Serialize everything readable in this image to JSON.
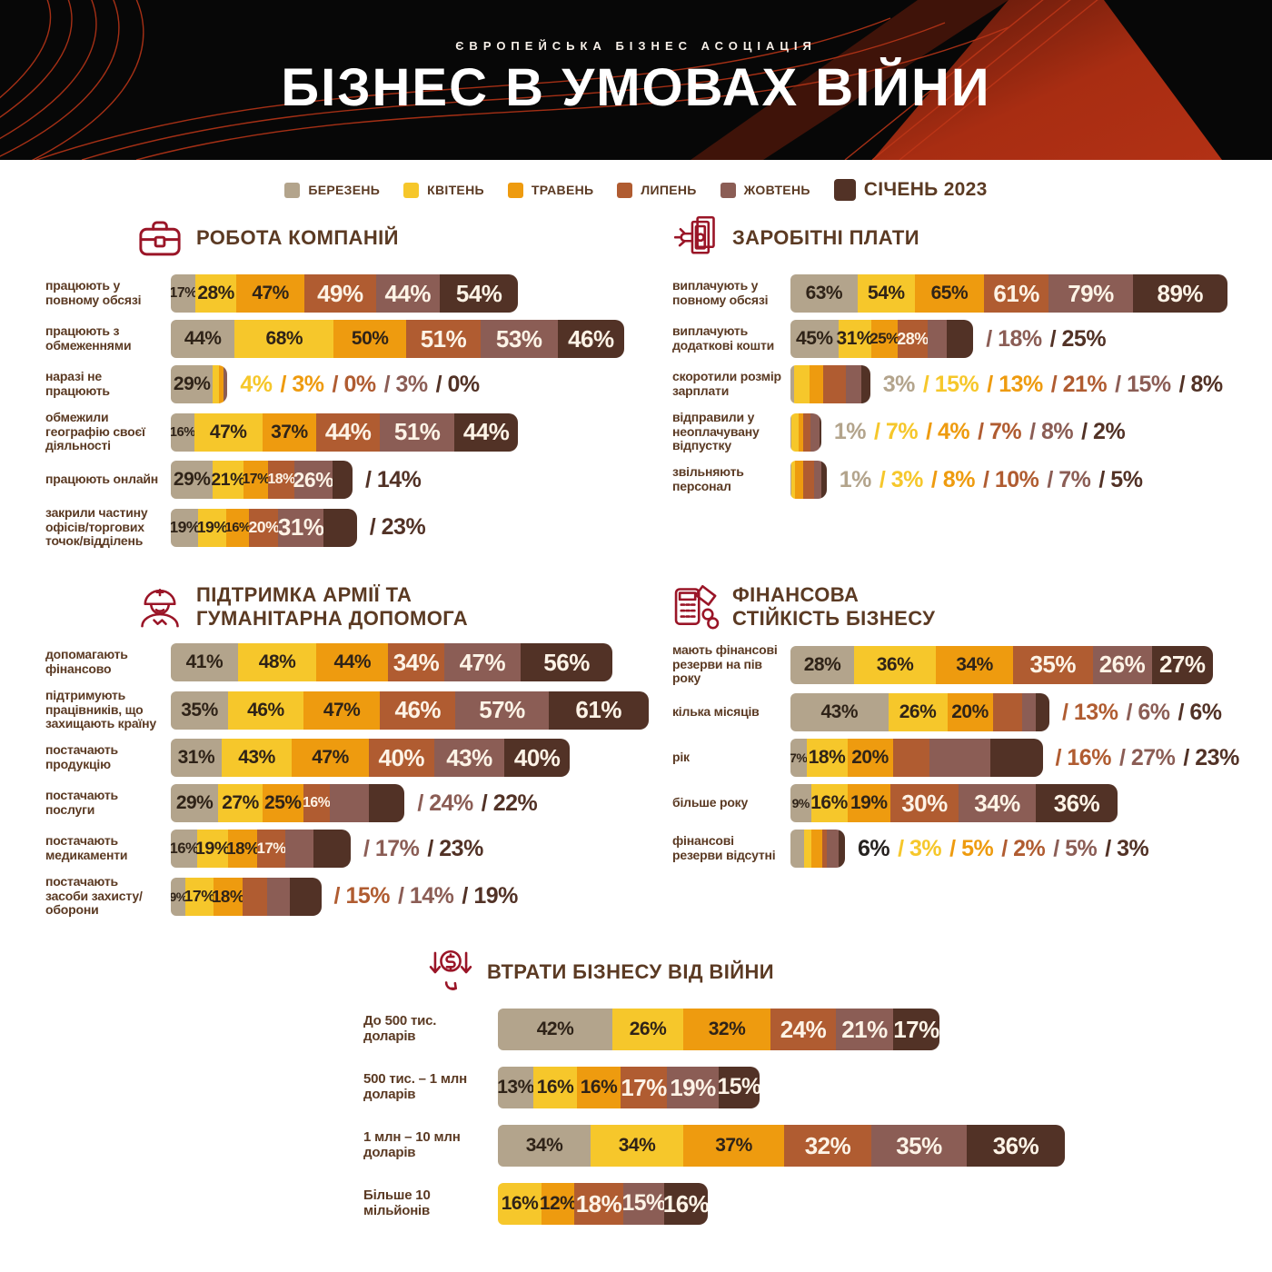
{
  "header": {
    "brand": "ЄВРОПЕЙСЬКА БІЗНЕС АСОЦІАЦІЯ",
    "title": "БІЗНЕС В УМОВАХ ВІЙНИ"
  },
  "months": [
    "БЕРЕЗЕНЬ",
    "КВІТЕНЬ",
    "ТРАВЕНЬ",
    "ЛИПЕНЬ",
    "ЖОВТЕНЬ",
    "СІЧЕНЬ 2023"
  ],
  "palette": {
    "month_colors": [
      "#b3a48c",
      "#f6c72b",
      "#ee9b0f",
      "#b05c31",
      "#8b5d55",
      "#523226"
    ],
    "ink": "#5b3a23",
    "icon_red": "#9a1527",
    "label_dark": "#2f2318",
    "label_light": "#fdf3e6",
    "header_red": "#b23115"
  },
  "chart_data": [
    {
      "type": "bar",
      "title": "РОБОТА КОМПАНІЙ",
      "icon": "briefcase-icon",
      "placement": "left",
      "unit": "%",
      "series_names": [
        "БЕРЕЗЕНЬ",
        "КВІТЕНЬ",
        "ТРАВЕНЬ",
        "ЛИПЕНЬ",
        "ЖОВТЕНЬ",
        "СІЧЕНЬ 2023"
      ],
      "rows": [
        {
          "category": "працюють у повному обсязі",
          "values": [
            17,
            28,
            47,
            49,
            44,
            54
          ],
          "inside": 6,
          "outside": []
        },
        {
          "category": "працюють з обмеженнями",
          "values": [
            44,
            68,
            50,
            51,
            53,
            46
          ],
          "inside": 6,
          "outside": []
        },
        {
          "category": "наразі не працюють",
          "values": [
            29,
            4,
            3,
            0,
            3,
            0
          ],
          "inside": 1,
          "outside": [
            {
              "text": "4%",
              "month": 1
            },
            {
              "text": "/ 3%",
              "month": 2
            },
            {
              "text": "/ 0%",
              "month": 3
            },
            {
              "text": "/ 3%",
              "month": 4
            },
            {
              "text": "/ 0%",
              "month": 5
            }
          ]
        },
        {
          "category": "обмежили географію своєї діяльності",
          "values": [
            16,
            47,
            37,
            44,
            51,
            44
          ],
          "inside": 6,
          "outside": []
        },
        {
          "category": "працюють онлайн",
          "values": [
            29,
            21,
            17,
            18,
            26,
            14
          ],
          "inside": 5,
          "outside": [
            {
              "text": "/ 14%",
              "month": 5
            }
          ]
        },
        {
          "category": "закрили частину офісів/торгових точок/відділень",
          "values": [
            19,
            19,
            16,
            20,
            31,
            23
          ],
          "inside": 5,
          "outside": [
            {
              "text": "/ 23%",
              "month": 5
            }
          ]
        }
      ]
    },
    {
      "type": "bar",
      "title": "ЗАРОБІТНІ ПЛАТИ",
      "icon": "banknotes-icon",
      "placement": "right",
      "unit": "%",
      "series_names": [
        "БЕРЕЗЕНЬ",
        "КВІТЕНЬ",
        "ТРАВЕНЬ",
        "ЛИПЕНЬ",
        "ЖОВТЕНЬ",
        "СІЧЕНЬ 2023"
      ],
      "rows": [
        {
          "category": "виплачують у повному обсязі",
          "values": [
            63,
            54,
            65,
            61,
            79,
            89
          ],
          "inside": 6,
          "outside": []
        },
        {
          "category": "виплачують додаткові кошти",
          "values": [
            45,
            31,
            25,
            28,
            18,
            25
          ],
          "inside": 4,
          "outside": [
            {
              "text": "/ 18%",
              "month": 4
            },
            {
              "text": "/ 25%",
              "month": 5
            }
          ]
        },
        {
          "category": "скоротили розмір зарплати",
          "values": [
            3,
            15,
            13,
            21,
            15,
            8
          ],
          "inside": 0,
          "outside": [
            {
              "text": "3%",
              "month": 0
            },
            {
              "text": "/ 15%",
              "month": 1
            },
            {
              "text": "/ 13%",
              "month": 2
            },
            {
              "text": "/ 21%",
              "month": 3
            },
            {
              "text": "/ 15%",
              "month": 4
            },
            {
              "text": "/ 8%",
              "month": 5
            }
          ]
        },
        {
          "category": "відправили у неоплачувану відпустку",
          "values": [
            1,
            7,
            4,
            7,
            8,
            2
          ],
          "inside": 0,
          "outside": [
            {
              "text": "1%",
              "month": 0
            },
            {
              "text": "/ 7%",
              "month": 1
            },
            {
              "text": "/ 4%",
              "month": 2
            },
            {
              "text": "/ 7%",
              "month": 3
            },
            {
              "text": "/ 8%",
              "month": 4
            },
            {
              "text": "/ 2%",
              "month": 5
            }
          ]
        },
        {
          "category": "звільняють персонал",
          "values": [
            1,
            3,
            8,
            10,
            7,
            5
          ],
          "inside": 0,
          "outside": [
            {
              "text": "1%",
              "month": 0
            },
            {
              "text": "/ 3%",
              "month": 1
            },
            {
              "text": "/ 8%",
              "month": 2
            },
            {
              "text": "/ 10%",
              "month": 3
            },
            {
              "text": "/ 7%",
              "month": 4
            },
            {
              "text": "/ 5%",
              "month": 5
            }
          ]
        }
      ]
    },
    {
      "type": "bar",
      "title": "ПІДТРИМКА АРМІЇ ТА\nГУМАНІТАРНА ДОПОМОГА",
      "icon": "soldier-icon",
      "placement": "left",
      "unit": "%",
      "series_names": [
        "БЕРЕЗЕНЬ",
        "КВІТЕНЬ",
        "ТРАВЕНЬ",
        "ЛИПЕНЬ",
        "ЖОВТЕНЬ",
        "СІЧЕНЬ 2023"
      ],
      "rows": [
        {
          "category": "допомагають фінансово",
          "values": [
            41,
            48,
            44,
            34,
            47,
            56
          ],
          "inside": 6,
          "outside": []
        },
        {
          "category": "підтримують працівників, що захищають країну",
          "values": [
            35,
            46,
            47,
            46,
            57,
            61
          ],
          "inside": 6,
          "outside": []
        },
        {
          "category": "постачають продукцію",
          "values": [
            31,
            43,
            47,
            40,
            43,
            40
          ],
          "inside": 6,
          "outside": []
        },
        {
          "category": "постачають послуги",
          "values": [
            29,
            27,
            25,
            16,
            24,
            22
          ],
          "inside": 4,
          "outside": [
            {
              "text": "/ 24%",
              "month": 4
            },
            {
              "text": "/ 22%",
              "month": 5
            }
          ]
        },
        {
          "category": "постачають медикаменти",
          "values": [
            16,
            19,
            18,
            17,
            17,
            23
          ],
          "inside": 4,
          "outside": [
            {
              "text": "/ 17%",
              "month": 4
            },
            {
              "text": "/ 23%",
              "month": 5
            }
          ]
        },
        {
          "category": "постачають засоби захисту/оборони",
          "values": [
            9,
            17,
            18,
            15,
            14,
            19
          ],
          "inside": 3,
          "outside": [
            {
              "text": "/ 15%",
              "month": 3
            },
            {
              "text": "/ 14%",
              "month": 4
            },
            {
              "text": "/ 19%",
              "month": 5
            }
          ]
        }
      ]
    },
    {
      "type": "bar",
      "title": "ФІНАНСОВА\nСТІЙКІСТЬ БІЗНЕСУ",
      "icon": "calculator-icon",
      "placement": "right",
      "unit": "%",
      "series_names": [
        "БЕРЕЗЕНЬ",
        "КВІТЕНЬ",
        "ТРАВЕНЬ",
        "ЛИПЕНЬ",
        "ЖОВТЕНЬ",
        "СІЧЕНЬ 2023"
      ],
      "rows": [
        {
          "category": "мають фінансові резерви на пів року",
          "values": [
            28,
            36,
            34,
            35,
            26,
            27
          ],
          "inside": 6,
          "outside": []
        },
        {
          "category": "кілька місяців",
          "values": [
            43,
            26,
            20,
            13,
            6,
            6
          ],
          "inside": 3,
          "outside": [
            {
              "text": "/ 13%",
              "month": 3
            },
            {
              "text": "/ 6%",
              "month": 4
            },
            {
              "text": "/ 6%",
              "month": 5
            }
          ]
        },
        {
          "category": "рік",
          "values": [
            7,
            18,
            20,
            16,
            27,
            23
          ],
          "inside": 3,
          "outside": [
            {
              "text": "/ 16%",
              "month": 3
            },
            {
              "text": "/ 27%",
              "month": 4
            },
            {
              "text": "/ 23%",
              "month": 5
            }
          ]
        },
        {
          "category": "більше року",
          "values": [
            9,
            16,
            19,
            30,
            34,
            36
          ],
          "inside": 6,
          "outside": []
        },
        {
          "category": "фінансові резерви відсутні",
          "values": [
            6,
            3,
            5,
            2,
            5,
            3
          ],
          "inside": 0,
          "outside": [
            {
              "text": "6%",
              "month": 0,
              "color": "#262220"
            },
            {
              "text": "/ 3%",
              "month": 1
            },
            {
              "text": "/ 5%",
              "month": 2
            },
            {
              "text": "/ 2%",
              "month": 3
            },
            {
              "text": "/ 5%",
              "month": 4
            },
            {
              "text": "/ 3%",
              "month": 5
            }
          ]
        }
      ]
    },
    {
      "type": "bar",
      "title": "ВТРАТИ БІЗНЕСУ ВІД ВІЙНИ",
      "icon": "dollar-loss-icon",
      "placement": "bottom",
      "unit": "%",
      "series_names": [
        "БЕРЕЗЕНЬ",
        "КВІТЕНЬ",
        "ТРАВЕНЬ",
        "ЛИПЕНЬ",
        "ЖОВТЕНЬ",
        "СІЧЕНЬ 2023"
      ],
      "rows": [
        {
          "category": "До 500 тис. доларів",
          "values": [
            42,
            26,
            32,
            24,
            21,
            17
          ],
          "inside": 6,
          "outside": []
        },
        {
          "category": "500 тис. – 1 млн доларів",
          "values": [
            13,
            16,
            16,
            17,
            19,
            15
          ],
          "inside": 6,
          "outside": []
        },
        {
          "category": "1 млн – 10 млн доларів",
          "values": [
            34,
            34,
            37,
            32,
            35,
            36
          ],
          "inside": 6,
          "outside": []
        },
        {
          "category": "Більше 10 мільйонів",
          "values": [
            null,
            16,
            12,
            18,
            15,
            16
          ],
          "inside": 6,
          "outside": []
        }
      ]
    }
  ]
}
